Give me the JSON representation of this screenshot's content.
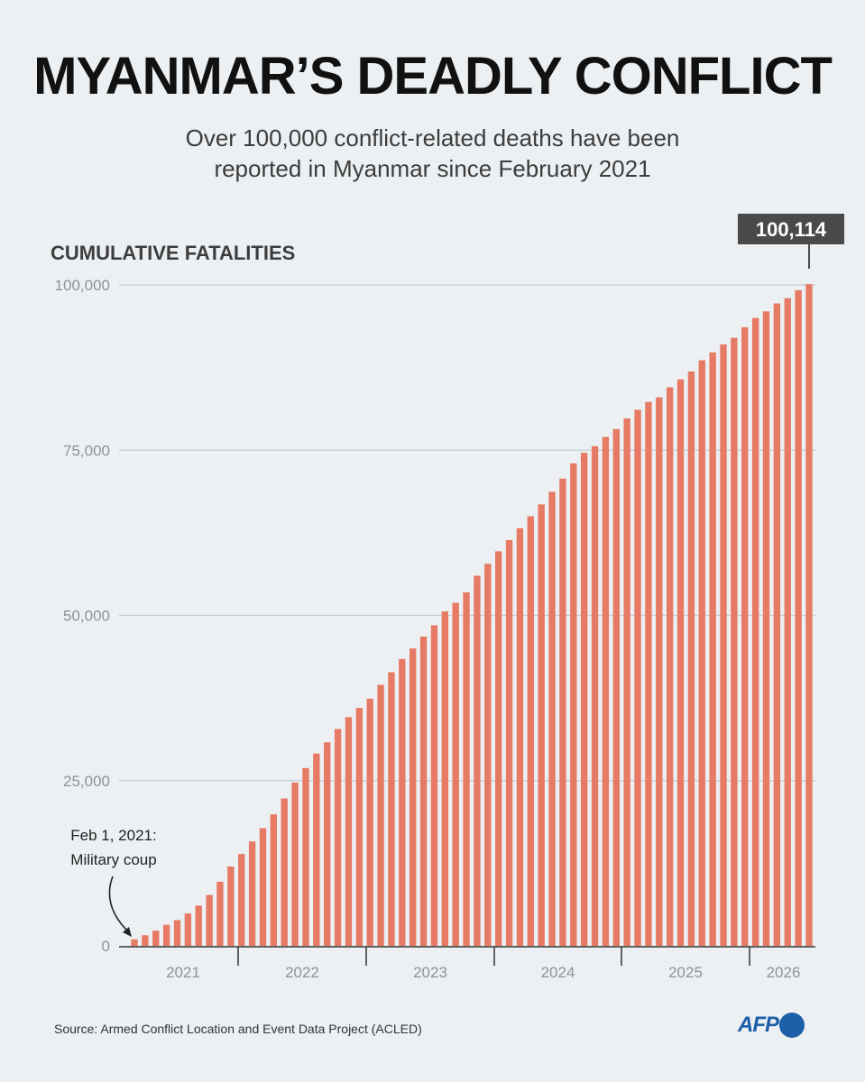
{
  "header": {
    "title": "MYANMAR’S DEADLY CONFLICT",
    "subtitle_line1": "Over 100,000 conflict-related deaths have been",
    "subtitle_line2": "reported in Myanmar since February 2021"
  },
  "footer": {
    "source": "Source: Armed Conflict Location and Event Data Project (ACLED)",
    "logo_text": "AFP"
  },
  "colors": {
    "bar": "#e67a64",
    "background": "#ecf0f3",
    "callout_bg": "#4a4a4a",
    "logo": "#1d5fa8"
  },
  "chart_data": {
    "type": "bar",
    "ylabel": "CUMULATIVE FATALITIES",
    "ylim": [
      0,
      100000
    ],
    "yticks": [
      0,
      25000,
      50000,
      75000,
      100000
    ],
    "ytick_labels": [
      "0",
      "25,000",
      "50,000",
      "75,000",
      "100,000"
    ],
    "grid": true,
    "x_period_labels": [
      "2021",
      "2022",
      "2023",
      "2024",
      "2025",
      "2026"
    ],
    "annotation": {
      "line1": "Feb 1, 2021:",
      "line2": "Military coup"
    },
    "callout_label": "100,114",
    "values": [
      1000,
      1600,
      2300,
      3200,
      3900,
      4900,
      6100,
      7700,
      9700,
      12000,
      13900,
      15800,
      17800,
      19900,
      22300,
      24700,
      26900,
      29100,
      30800,
      32800,
      34600,
      36000,
      37400,
      39500,
      41400,
      43400,
      45000,
      46800,
      48500,
      50600,
      51900,
      53500,
      56000,
      57800,
      59700,
      61400,
      63200,
      65000,
      66800,
      68700,
      70700,
      73000,
      74600,
      75600,
      77000,
      78200,
      79800,
      81100,
      82300,
      83000,
      84500,
      85700,
      86900,
      88600,
      89800,
      91000,
      92000,
      93600,
      95000,
      96000,
      97200,
      98000,
      99200,
      100114
    ]
  }
}
